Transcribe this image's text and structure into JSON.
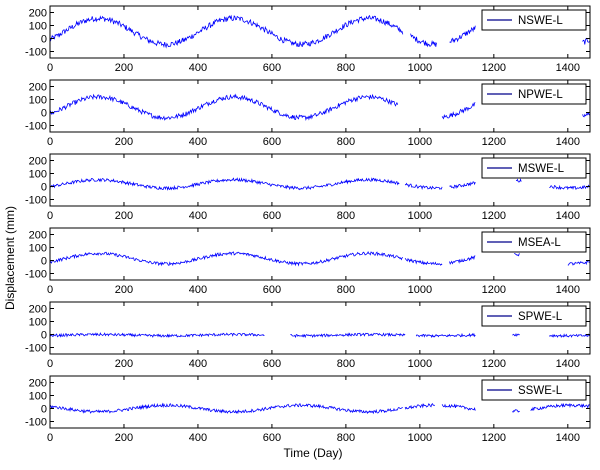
{
  "figure": {
    "xlabel": "Time (Day)",
    "ylabel": "Displacement (mm)",
    "line_color": "#0000ff",
    "legend_line_color": "#00008b"
  },
  "chart_data": [
    {
      "type": "line",
      "series": [
        {
          "name": "NSWE-L"
        }
      ],
      "xlim": [
        0,
        1460
      ],
      "ylim": [
        -150,
        250
      ],
      "xticks": [
        0,
        200,
        400,
        600,
        800,
        1000,
        1200,
        1400
      ],
      "yticks": [
        -100,
        0,
        100,
        200
      ],
      "legend": "top-right",
      "grid": false,
      "amplitude": 100,
      "offset": 55,
      "noise": 22,
      "segments": [
        [
          0,
          955
        ],
        [
          975,
          1045
        ],
        [
          1080,
          1150
        ],
        [
          1440,
          1460
        ]
      ]
    },
    {
      "type": "line",
      "series": [
        {
          "name": "NPWE-L"
        }
      ],
      "xlim": [
        0,
        1460
      ],
      "ylim": [
        -150,
        250
      ],
      "xticks": [
        0,
        200,
        400,
        600,
        800,
        1000,
        1200,
        1400
      ],
      "yticks": [
        -100,
        0,
        100,
        200
      ],
      "legend": "top-right",
      "grid": false,
      "amplitude": 80,
      "offset": 40,
      "noise": 18,
      "segments": [
        [
          0,
          940
        ],
        [
          1060,
          1150
        ],
        [
          1440,
          1460
        ]
      ]
    },
    {
      "type": "line",
      "series": [
        {
          "name": "MSWE-L"
        }
      ],
      "xlim": [
        0,
        1460
      ],
      "ylim": [
        -150,
        250
      ],
      "xticks": [
        0,
        200,
        400,
        600,
        800,
        1000,
        1200,
        1400
      ],
      "yticks": [
        -100,
        0,
        100,
        200
      ],
      "legend": "top-right",
      "grid": false,
      "amplitude": 32,
      "offset": 20,
      "noise": 12,
      "segments": [
        [
          0,
          945
        ],
        [
          960,
          1060
        ],
        [
          1080,
          1150
        ],
        [
          1260,
          1275
        ],
        [
          1350,
          1460
        ]
      ]
    },
    {
      "type": "line",
      "series": [
        {
          "name": "MSEA-L"
        }
      ],
      "xlim": [
        0,
        1460
      ],
      "ylim": [
        -150,
        250
      ],
      "xticks": [
        0,
        200,
        400,
        600,
        800,
        1000,
        1200,
        1400
      ],
      "yticks": [
        -100,
        0,
        100,
        200
      ],
      "legend": "top-right",
      "grid": false,
      "amplitude": 40,
      "offset": 15,
      "noise": 12,
      "segments": [
        [
          0,
          955
        ],
        [
          960,
          1060
        ],
        [
          1080,
          1150
        ],
        [
          1255,
          1270
        ],
        [
          1400,
          1460
        ]
      ]
    },
    {
      "type": "line",
      "series": [
        {
          "name": "SPWE-L"
        }
      ],
      "xlim": [
        0,
        1460
      ],
      "ylim": [
        -150,
        250
      ],
      "xticks": [
        0,
        200,
        400,
        600,
        800,
        1000,
        1200,
        1400
      ],
      "yticks": [
        -100,
        0,
        100,
        200
      ],
      "legend": "top-right",
      "grid": false,
      "amplitude": 5,
      "offset": -5,
      "noise": 10,
      "segments": [
        [
          0,
          580
        ],
        [
          650,
          960
        ],
        [
          990,
          1150
        ],
        [
          1250,
          1270
        ],
        [
          1350,
          1460
        ]
      ]
    },
    {
      "type": "line",
      "series": [
        {
          "name": "SSWE-L"
        }
      ],
      "xlim": [
        0,
        1460
      ],
      "ylim": [
        -150,
        250
      ],
      "xticks": [
        0,
        200,
        400,
        600,
        800,
        1000,
        1200,
        1400
      ],
      "yticks": [
        -100,
        0,
        100,
        200
      ],
      "legend": "top-right",
      "grid": false,
      "amplitude": -25,
      "offset": 0,
      "noise": 12,
      "segments": [
        [
          0,
          955
        ],
        [
          960,
          1040
        ],
        [
          1060,
          1150
        ],
        [
          1250,
          1270
        ],
        [
          1300,
          1460
        ]
      ]
    }
  ]
}
